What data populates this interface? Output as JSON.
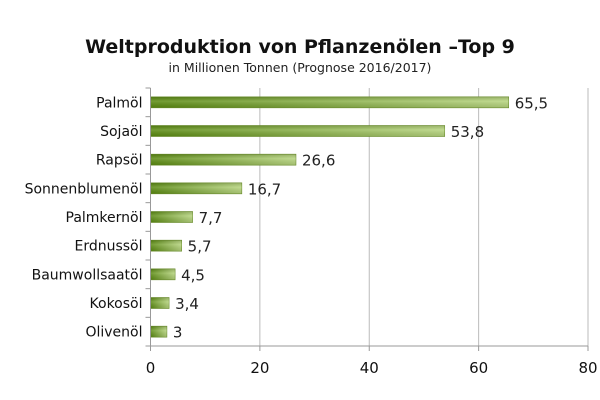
{
  "chart_data": {
    "type": "bar",
    "orientation": "horizontal",
    "title": "Weltproduktion von Pflanzenölen –Top 9",
    "subtitle": "in Millionen Tonnen (Prognose 2016/2017)",
    "categories": [
      "Palmöl",
      "Sojaöl",
      "Rapsöl",
      "Sonnenblumenöl",
      "Palmkernöl",
      "Erdnussöl",
      "Baumwollsaatöl",
      "Kokosöl",
      "Olivenöl"
    ],
    "values": [
      65.5,
      53.8,
      26.6,
      16.7,
      7.7,
      5.7,
      4.5,
      3.4,
      3
    ],
    "value_labels": [
      "65,5",
      "53,8",
      "26,6",
      "16,7",
      "7,7",
      "5,7",
      "4,5",
      "3,4",
      "3"
    ],
    "xlim": [
      0,
      80
    ],
    "xticks": [
      0,
      20,
      40,
      60,
      80
    ],
    "xtick_labels": [
      "0",
      "20",
      "40",
      "60",
      "80"
    ],
    "grid": "vertical",
    "legend": "none",
    "colors": {
      "bar_dark": "#5a8a10",
      "bar_light": "#b6d47e",
      "grid": "#bbbbbb"
    }
  }
}
